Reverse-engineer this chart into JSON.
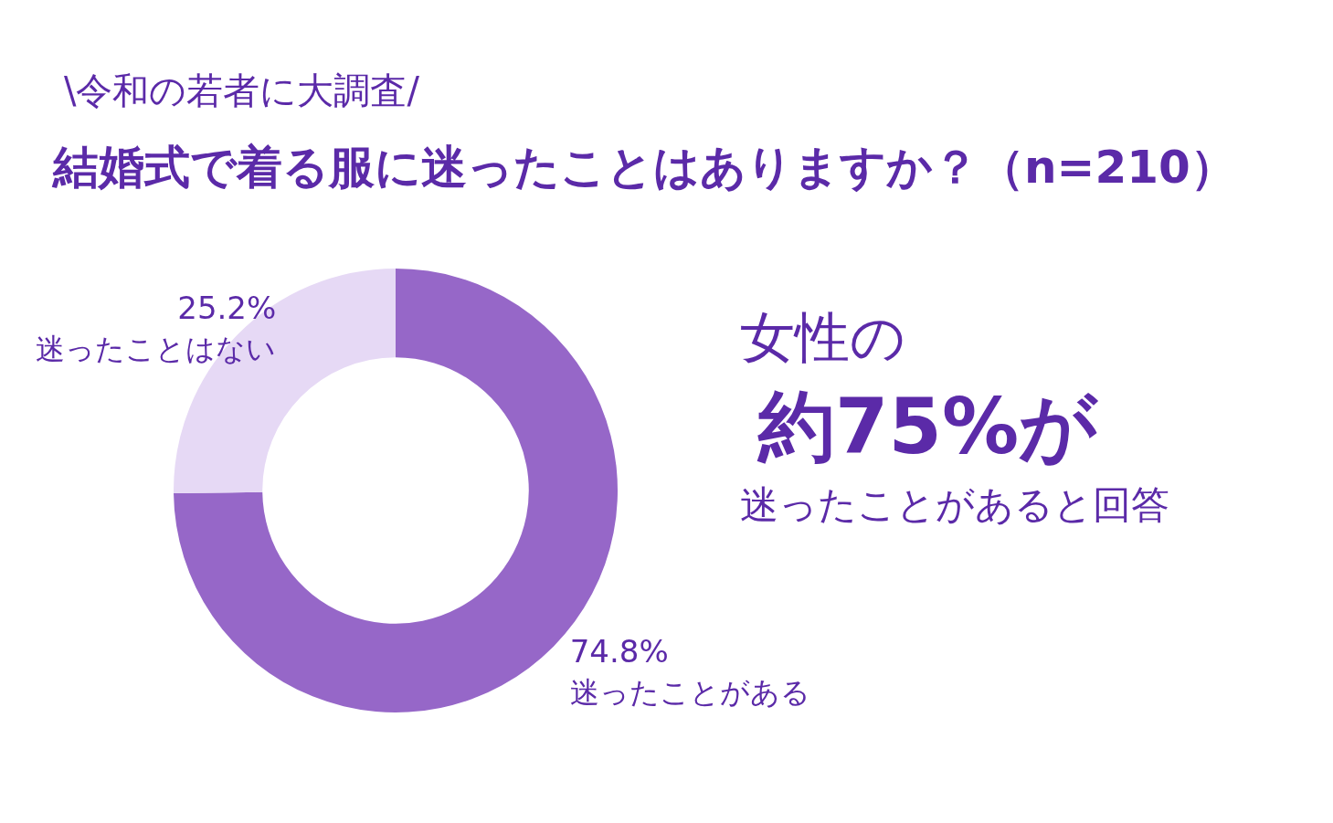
{
  "chart_data": {
    "type": "donut",
    "subtitle": "\\令和の若者に大調査/",
    "title": "結婚式で着る服に迷ったことはありますか？（n=210）",
    "categories": [
      "迷ったことがある",
      "迷ったことはない"
    ],
    "values": [
      74.8,
      25.2
    ],
    "value_labels": [
      "74.8%",
      "25.2%"
    ],
    "colors": [
      "#9667c8",
      "#e6d9f5"
    ],
    "legend": false,
    "annotations": [
      "女性の",
      "約75%が",
      "迷ったことがあると回答"
    ]
  }
}
